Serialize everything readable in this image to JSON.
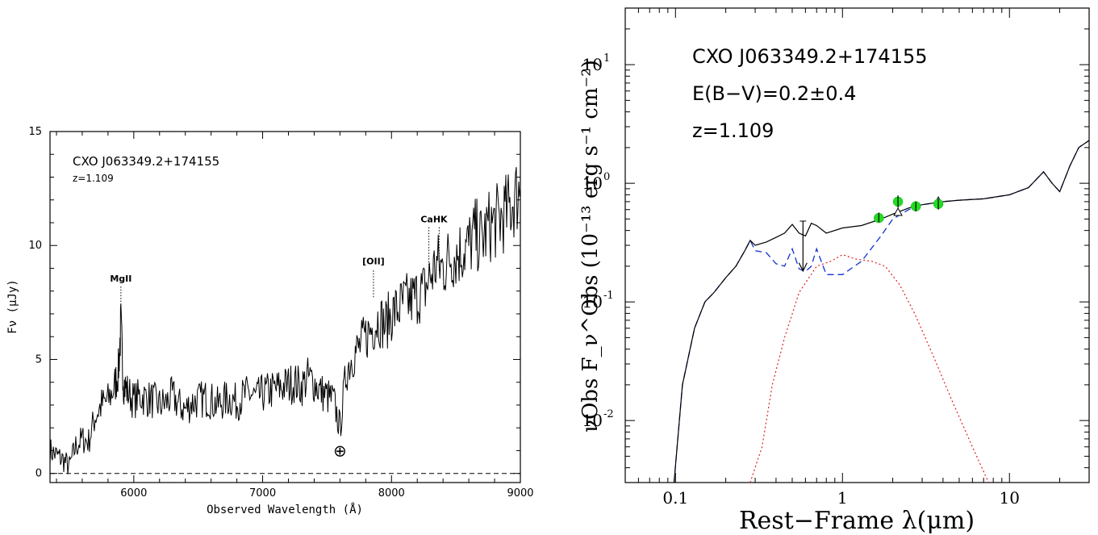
{
  "chart_data": [
    {
      "type": "line",
      "title": "CXO J063349.2+174155",
      "subtitle": "z=1.109",
      "xlabel": "Observed Wavelength (Å)",
      "ylabel": "Fν (μJy)",
      "xlim": [
        5350,
        9000
      ],
      "ylim": [
        -0.4,
        15
      ],
      "xticks": [
        6000,
        7000,
        8000,
        9000
      ],
      "yticks": [
        0,
        5,
        10,
        15
      ],
      "reference_line": {
        "y": 0,
        "style": "dashed"
      },
      "annotations": [
        {
          "label": "MgII",
          "x": 5900
        },
        {
          "label": "[OII]",
          "x": 7860
        },
        {
          "label": "CaHK",
          "x": [
            8290,
            8370
          ]
        },
        {
          "label": "⊕",
          "x": 7600
        }
      ],
      "series": [
        {
          "x": [
            5350,
            5400,
            5450,
            5500,
            5550,
            5600,
            5650,
            5700,
            5750,
            5800,
            5850,
            5880,
            5900,
            5920,
            5950,
            6000,
            6050,
            6100,
            6150,
            6200,
            6250,
            6300,
            6350,
            6400,
            6450,
            6500,
            6550,
            6600,
            6650,
            6700,
            6750,
            6800,
            6850,
            6900,
            6950,
            7000,
            7050,
            7100,
            7150,
            7200,
            7250,
            7300,
            7350,
            7400,
            7450,
            7500,
            7550,
            7600,
            7650,
            7700,
            7750,
            7800,
            7850,
            7900,
            7950,
            8000,
            8050,
            8100,
            8150,
            8200,
            8250,
            8300,
            8350,
            8400,
            8450,
            8500,
            8550,
            8600,
            8650,
            8700,
            8750,
            8800,
            8850,
            8900,
            8950,
            9000
          ],
          "values": [
            1.0,
            0.8,
            0.6,
            0.3,
            1.2,
            1.5,
            1.4,
            2.5,
            3.0,
            3.2,
            3.8,
            4.5,
            6.5,
            4.0,
            3.6,
            3.2,
            3.4,
            3.3,
            3.2,
            3.0,
            3.1,
            3.4,
            3.0,
            2.8,
            3.1,
            3.2,
            3.3,
            3.2,
            3.0,
            3.2,
            3.3,
            3.1,
            3.4,
            3.5,
            3.3,
            3.5,
            3.6,
            3.7,
            3.8,
            3.9,
            4.0,
            3.8,
            4.2,
            4.0,
            3.6,
            3.4,
            3.2,
            2.0,
            4.5,
            5.2,
            5.5,
            6.0,
            6.4,
            6.8,
            6.5,
            7.0,
            7.2,
            7.5,
            7.6,
            7.8,
            8.0,
            8.6,
            9.2,
            9.0,
            9.5,
            9.6,
            9.8,
            10.0,
            10.5,
            10.2,
            10.8,
            11.0,
            11.2,
            11.5,
            12.0,
            12.5
          ]
        }
      ]
    },
    {
      "type": "line",
      "title": "CXO J063349.2+174155",
      "text_lines": [
        "CXO J063349.2+174155",
        "E(B−V)=0.2±0.4",
        "z=1.109"
      ],
      "xlabel": "Rest−Frame λ(μm)",
      "ylabel": "νObs F_ν^Obs (10⁻¹³ erg s⁻¹ cm⁻²)",
      "x_scale": "log",
      "y_scale": "log",
      "xlim": [
        0.05,
        30
      ],
      "ylim": [
        0.003,
        30
      ],
      "xticks": [
        0.1,
        1,
        10
      ],
      "xtick_labels": [
        "0.1",
        "1",
        "10"
      ],
      "yticks": [
        0.01,
        0.1,
        1,
        10
      ],
      "ytick_labels": [
        [
          "10",
          "-2"
        ],
        [
          "10",
          "-1"
        ],
        [
          "10",
          "0"
        ],
        [
          "10",
          "1"
        ]
      ],
      "series": [
        {
          "style": "solid",
          "color": "#000000",
          "x": [
            0.098,
            0.11,
            0.13,
            0.15,
            0.17,
            0.2,
            0.23,
            0.26,
            0.28,
            0.3,
            0.35,
            0.4,
            0.45,
            0.5,
            0.55,
            0.6,
            0.65,
            0.7,
            0.8,
            1.0,
            1.3,
            1.7,
            2.0,
            2.5,
            3.0,
            4.0,
            5.0,
            7.0,
            10,
            13,
            16,
            18,
            20,
            23,
            26,
            30
          ],
          "values": [
            0.003,
            0.02,
            0.06,
            0.1,
            0.12,
            0.16,
            0.2,
            0.27,
            0.33,
            0.3,
            0.32,
            0.35,
            0.38,
            0.45,
            0.38,
            0.36,
            0.46,
            0.44,
            0.38,
            0.42,
            0.44,
            0.5,
            0.55,
            0.62,
            0.66,
            0.7,
            0.72,
            0.74,
            0.8,
            0.92,
            1.25,
            1.0,
            0.85,
            1.4,
            2.0,
            2.3
          ]
        },
        {
          "style": "dashed",
          "color": "#1030d0",
          "x": [
            0.098,
            0.11,
            0.13,
            0.15,
            0.17,
            0.2,
            0.23,
            0.26,
            0.28,
            0.3,
            0.35,
            0.4,
            0.45,
            0.5,
            0.55,
            0.6,
            0.65,
            0.7,
            0.8,
            1.0,
            1.3,
            1.7,
            2.0,
            2.5,
            3.0,
            4.0,
            5.0,
            7.0,
            10,
            13,
            16,
            18,
            20,
            23,
            26,
            30
          ],
          "values": [
            0.003,
            0.02,
            0.06,
            0.1,
            0.12,
            0.16,
            0.2,
            0.27,
            0.33,
            0.27,
            0.26,
            0.21,
            0.2,
            0.28,
            0.19,
            0.18,
            0.2,
            0.28,
            0.17,
            0.17,
            0.22,
            0.36,
            0.5,
            0.6,
            0.66,
            0.7,
            0.72,
            0.74,
            0.8,
            0.92,
            1.25,
            1.0,
            0.85,
            1.4,
            2.0,
            2.3
          ]
        },
        {
          "style": "dotted",
          "color": "#e02020",
          "x": [
            0.28,
            0.33,
            0.38,
            0.45,
            0.55,
            0.7,
            0.85,
            1.0,
            1.2,
            1.5,
            1.8,
            2.2,
            2.7,
            3.5,
            4.5,
            6.0,
            7.5
          ],
          "values": [
            0.003,
            0.006,
            0.02,
            0.05,
            0.12,
            0.2,
            0.22,
            0.25,
            0.23,
            0.22,
            0.2,
            0.14,
            0.08,
            0.035,
            0.015,
            0.006,
            0.003
          ]
        }
      ],
      "data_points": [
        {
          "x": 1.65,
          "y": 0.51,
          "err_lo": 0.47,
          "err_hi": 0.56
        },
        {
          "x": 2.15,
          "y": 0.7,
          "err_lo": 0.62,
          "err_hi": 0.79
        },
        {
          "x": 2.75,
          "y": 0.64,
          "err_lo": 0.58,
          "err_hi": 0.7
        },
        {
          "x": 3.75,
          "y": 0.67,
          "err_lo": 0.6,
          "err_hi": 0.74
        }
      ],
      "model_points": [
        {
          "x": 1.65,
          "y": 0.52
        },
        {
          "x": 2.15,
          "y": 0.57
        },
        {
          "x": 3.75,
          "y": 0.71
        }
      ],
      "upper_limits": [
        {
          "x": 0.58,
          "y": 0.48
        }
      ],
      "colors": {
        "data_points": "#22dd22",
        "model": "#1030d0",
        "host": "#e02020",
        "total": "#000000"
      }
    }
  ]
}
